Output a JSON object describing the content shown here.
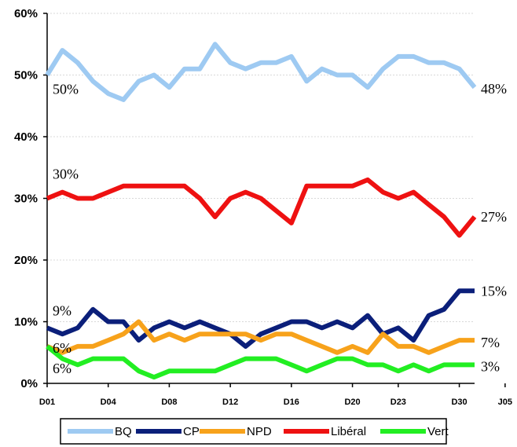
{
  "chart_data": {
    "type": "line",
    "ylim": [
      0,
      60
    ],
    "yticks": [
      "0%",
      "10%",
      "20%",
      "30%",
      "40%",
      "50%",
      "60%"
    ],
    "x_labels": [
      "D01",
      "D04",
      "D08",
      "D12",
      "D16",
      "D20",
      "D23",
      "D30",
      "J05"
    ],
    "x_label_positions": [
      0,
      4,
      8,
      12,
      16,
      20,
      23,
      27,
      30
    ],
    "grid": true,
    "legend_position": "bottom",
    "series": [
      {
        "name": "BQ",
        "color": "#9ecaf2",
        "values": [
          50,
          54,
          52,
          49,
          47,
          46,
          49,
          50,
          48,
          51,
          51,
          55,
          52,
          51,
          52,
          52,
          53,
          49,
          51,
          50,
          50,
          48,
          51,
          53,
          53,
          52,
          52,
          51,
          48
        ]
      },
      {
        "name": "CP",
        "color": "#0b1f7a",
        "values": [
          9,
          8,
          9,
          12,
          10,
          10,
          7,
          9,
          10,
          9,
          10,
          9,
          8,
          6,
          8,
          9,
          10,
          10,
          9,
          10,
          9,
          11,
          8,
          9,
          7,
          11,
          12,
          15,
          15
        ]
      },
      {
        "name": "NPD",
        "color": "#f7a21b",
        "values": [
          6,
          5,
          6,
          6,
          7,
          8,
          10,
          7,
          8,
          7,
          8,
          8,
          8,
          8,
          7,
          8,
          8,
          7,
          6,
          5,
          6,
          5,
          8,
          6,
          6,
          5,
          6,
          7,
          7
        ]
      },
      {
        "name": "Libéral",
        "color": "#ee1111",
        "values": [
          30,
          31,
          30,
          30,
          31,
          32,
          32,
          32,
          32,
          32,
          30,
          27,
          30,
          31,
          30,
          28,
          26,
          32,
          32,
          32,
          32,
          33,
          31,
          30,
          31,
          29,
          27,
          24,
          27
        ]
      },
      {
        "name": "Vert",
        "color": "#22ee22",
        "values": [
          6,
          4,
          3,
          4,
          4,
          4,
          2,
          1,
          2,
          2,
          2,
          2,
          3,
          4,
          4,
          4,
          3,
          2,
          3,
          4,
          4,
          3,
          3,
          2,
          3,
          2,
          3,
          3,
          3
        ]
      }
    ],
    "data_labels": [
      {
        "series": "BQ",
        "side": "start",
        "text": "50%"
      },
      {
        "series": "BQ",
        "side": "end",
        "text": "48%"
      },
      {
        "series": "Libéral",
        "side": "start",
        "text": "30%"
      },
      {
        "series": "Libéral",
        "side": "end",
        "text": "27%"
      },
      {
        "series": "CP",
        "side": "start",
        "text": "9%"
      },
      {
        "series": "CP",
        "side": "end",
        "text": "15%"
      },
      {
        "series": "NPD",
        "side": "start",
        "text": "6%"
      },
      {
        "series": "NPD",
        "side": "end",
        "text": "7%"
      },
      {
        "series": "Vert",
        "side": "start",
        "text": "6%"
      },
      {
        "series": "Vert",
        "side": "end",
        "text": "3%"
      }
    ]
  }
}
